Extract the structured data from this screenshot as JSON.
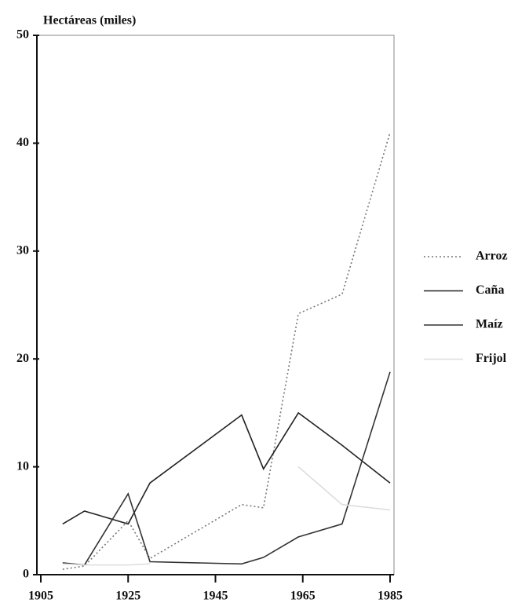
{
  "chart_data": {
    "type": "line",
    "y_label": "Hectáreas (miles)",
    "x": [
      1910,
      1915,
      1925,
      1930,
      1951,
      1956,
      1964,
      1974,
      1985
    ],
    "series": [
      {
        "name": "Arroz",
        "color": "#777777",
        "dash": "dotted",
        "values": [
          0.5,
          0.8,
          5,
          1.5,
          6.5,
          6.2,
          24.2,
          26,
          41
        ]
      },
      {
        "name": "Caña",
        "color": "#222222",
        "dash": "solid",
        "values": [
          4.7,
          5.9,
          4.7,
          8.5,
          14.8,
          9.8,
          15,
          12,
          8.5
        ]
      },
      {
        "name": "Maíz",
        "color": "#333333",
        "dash": "solid",
        "values": [
          1.1,
          0.9,
          7.5,
          1.2,
          1.0,
          1.6,
          3.5,
          4.7,
          18.8
        ]
      },
      {
        "name": "Frijol",
        "color": "#dddddd",
        "dash": "solid",
        "values": [
          1.0,
          0.9,
          0.9,
          1.0,
          null,
          null,
          10,
          6.5,
          6
        ]
      }
    ],
    "xlim": [
      1905,
      1985
    ],
    "xticks": [
      1905,
      1925,
      1945,
      1965,
      1985
    ],
    "ylim": [
      0,
      50
    ],
    "yticks": [
      0,
      10,
      20,
      30,
      40,
      50
    ]
  }
}
